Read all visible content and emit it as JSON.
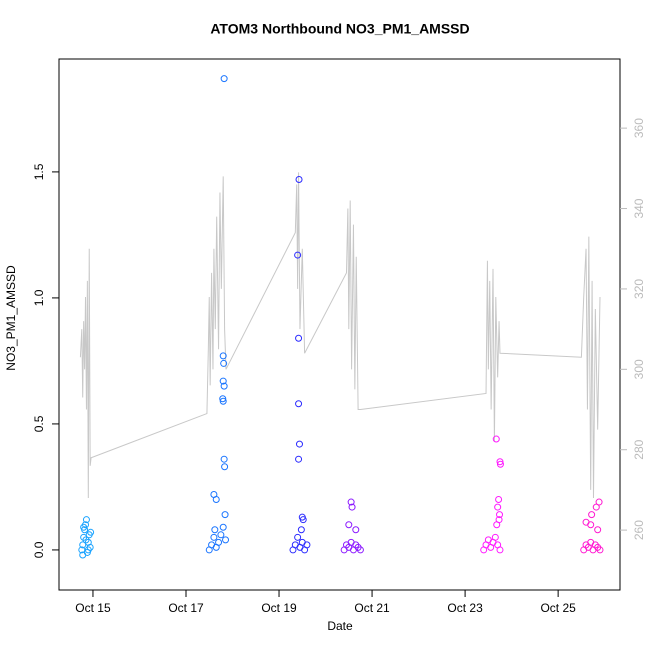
{
  "chart_data": {
    "type": "scatter",
    "title": "ATOM3 Northbound NO3_PM1_AMSSD",
    "x_label": "Date",
    "y_label": "NO3_PM1_AMSSD",
    "xlim": [
      14.27,
      26.33
    ],
    "ylim": [
      -0.159,
      1.948
    ],
    "y2lim": [
      245.1,
      377.2
    ],
    "xticks": [
      {
        "value": 15,
        "label": "Oct 15"
      },
      {
        "value": 17,
        "label": "Oct 17"
      },
      {
        "value": 19,
        "label": "Oct 19"
      },
      {
        "value": 21,
        "label": "Oct 21"
      },
      {
        "value": 23,
        "label": "Oct 23"
      },
      {
        "value": 25,
        "label": "Oct 25"
      }
    ],
    "yticks": [
      {
        "value": 0,
        "label": "0.0"
      },
      0.5,
      {
        "value": 1,
        "label": "1.0"
      },
      1.5
    ],
    "y2ticks": [
      260,
      280,
      300,
      320,
      340,
      360
    ],
    "series": [
      {
        "color": "#1aa3ff",
        "x": [
          14.76,
          14.78,
          14.8,
          14.82,
          14.84,
          14.86,
          14.88,
          14.9,
          14.92,
          14.94,
          14.8,
          14.85,
          14.9,
          14.78,
          14.95
        ],
        "values": [
          0.0,
          0.02,
          0.05,
          0.08,
          0.1,
          0.12,
          -0.01,
          0.03,
          0.06,
          0.01,
          0.09,
          0.04,
          0.0,
          -0.02,
          0.07
        ]
      },
      {
        "color": "#1a75ff",
        "x": [
          17.5,
          17.55,
          17.6,
          17.62,
          17.65,
          17.7,
          17.75,
          17.8,
          17.85,
          17.6,
          17.65,
          17.82,
          17.8,
          17.81,
          17.8,
          17.82,
          17.79,
          17.8,
          17.82,
          17.83,
          17.84
        ],
        "values": [
          0.0,
          0.02,
          0.05,
          0.08,
          0.01,
          0.03,
          0.06,
          0.09,
          0.04,
          0.22,
          0.2,
          1.87,
          0.77,
          0.74,
          0.67,
          0.65,
          0.6,
          0.59,
          0.36,
          0.33,
          0.14
        ]
      },
      {
        "color": "#2b2bff",
        "x": [
          19.3,
          19.35,
          19.4,
          19.45,
          19.5,
          19.55,
          19.6,
          19.43,
          19.4,
          19.42,
          19.42,
          19.44,
          19.42,
          19.5,
          19.52,
          19.48
        ],
        "values": [
          0.0,
          0.02,
          0.05,
          0.01,
          0.03,
          0.0,
          0.02,
          1.47,
          1.17,
          0.84,
          0.58,
          0.42,
          0.36,
          0.13,
          0.12,
          0.08
        ]
      },
      {
        "color": "#8c1aff",
        "x": [
          20.4,
          20.45,
          20.5,
          20.55,
          20.6,
          20.65,
          20.7,
          20.75,
          20.55,
          20.57,
          20.5,
          20.65
        ],
        "values": [
          0.0,
          0.02,
          0.01,
          0.03,
          0.0,
          0.02,
          0.01,
          0.0,
          0.19,
          0.17,
          0.1,
          0.08
        ]
      },
      {
        "color": "#ff1aff",
        "x": [
          23.4,
          23.45,
          23.5,
          23.55,
          23.6,
          23.65,
          23.7,
          23.75,
          23.67,
          23.75,
          23.76,
          23.72,
          23.7,
          23.74,
          23.73,
          23.68
        ],
        "values": [
          0.0,
          0.02,
          0.04,
          0.01,
          0.03,
          0.05,
          0.02,
          0.0,
          0.44,
          0.35,
          0.34,
          0.2,
          0.17,
          0.14,
          0.12,
          0.1
        ]
      },
      {
        "color": "#ff1ad1",
        "x": [
          25.55,
          25.6,
          25.65,
          25.7,
          25.75,
          25.8,
          25.85,
          25.9,
          25.88,
          25.82,
          25.72,
          25.6,
          25.7,
          25.85
        ],
        "values": [
          0.0,
          0.02,
          0.01,
          0.03,
          0.0,
          0.02,
          0.01,
          0.0,
          0.19,
          0.17,
          0.14,
          0.11,
          0.1,
          0.08
        ]
      },
      {
        "color": "#c8c8c8",
        "axis": "y2",
        "style": "line",
        "x": [
          14.73,
          14.76,
          14.78,
          14.8,
          14.82,
          14.84,
          14.86,
          14.88,
          14.9,
          14.92,
          14.94,
          14.96,
          17.45,
          17.48,
          17.5,
          17.52,
          17.55,
          17.58,
          17.6,
          17.63,
          17.66,
          17.7,
          17.73,
          17.76,
          17.8,
          17.83,
          17.86,
          19.35,
          19.38,
          19.4,
          19.42,
          19.45,
          19.5,
          19.55,
          20.45,
          20.48,
          20.5,
          20.53,
          20.56,
          20.6,
          20.63,
          20.66,
          20.7,
          20.75,
          23.45,
          23.48,
          23.5,
          23.53,
          23.56,
          23.6,
          23.63,
          23.66,
          23.7,
          23.73,
          23.75,
          25.5,
          25.55,
          25.6,
          25.63,
          25.66,
          25.7,
          25.73,
          25.76,
          25.8,
          25.85,
          25.9
        ],
        "values": [
          303,
          310,
          293,
          312,
          300,
          318,
          290,
          322,
          268,
          330,
          276,
          278,
          289,
          305,
          318,
          296,
          324,
          300,
          330,
          310,
          338,
          305,
          344,
          320,
          348,
          310,
          300,
          334,
          346,
          320,
          349,
          310,
          330,
          304,
          324,
          340,
          310,
          342,
          300,
          336,
          295,
          328,
          290,
          290,
          294,
          327,
          300,
          322,
          290,
          325,
          282,
          318,
          298,
          312,
          304,
          303,
          318,
          330,
          290,
          333,
          270,
          322,
          268,
          315,
          285,
          318
        ]
      }
    ]
  }
}
